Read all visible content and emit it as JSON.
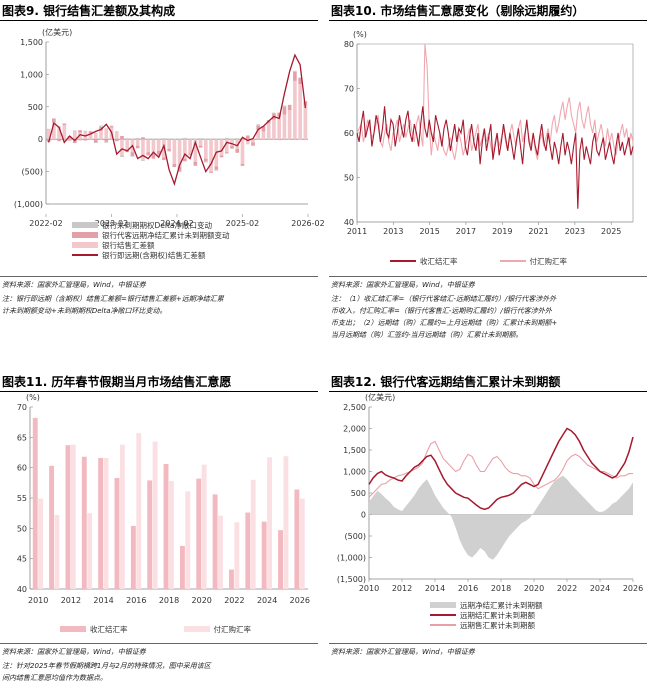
{
  "panels": [
    {
      "title": "图表9. 银行结售汇差额及其构成",
      "source": "资料来源：国家外汇管理局，Wind，中银证券",
      "note1": "注：银行即远期（含期权）结售汇差额=银行结售汇差额+远期净结汇累",
      "note2": "计未到期额变动+未到期期权Delta净敞口环比变动。"
    },
    {
      "title": "图表10. 市场结售汇意愿变化（剔除远期履约）",
      "source": "资料来源：国家外汇管理局，Wind，中银证券",
      "note1": "注：（1）收汇结汇率=（银行代客结汇-远期结汇履约）/银行代客涉外外",
      "note2": "币收入，付汇购汇率=（银行代客售汇-远期购汇履约）/银行代客涉外外",
      "note3": "币支出；（2）远期结（购）汇履约=上月远期结（购）汇累计未到期额+",
      "note4": "当月远期结（购）汇签约-当月远期结（购）汇累计未到期额。"
    },
    {
      "title": "图表11. 历年春节假期当月市场结售汇意愿",
      "source": "资料来源：国家外汇管理局，Wind，中银证券",
      "note1": "注：针对2025年春节假期横跨1月与2月的特殊情况，图中采用该区",
      "note2": "间内结售汇意愿均值作为数据点。"
    },
    {
      "title": "图表12. 银行代客远期结售汇累计未到期额",
      "source": "资料来源：国家外汇管理局，Wind，中银证券"
    }
  ],
  "chart_data": [
    {
      "type": "bar",
      "ylabel": "(亿美元)",
      "ylim": [
        -1000,
        1500
      ],
      "yticks": [
        "(1,000)",
        "(500)",
        "0",
        "500",
        "1,000",
        "1,500"
      ],
      "xticks": [
        "2022-02",
        "2023-02",
        "2024-02",
        "2025-02",
        "2026-02"
      ],
      "series": [
        {
          "name": "银行未到期期权Delta净敞口变动",
          "kind": "bar",
          "color": "#c8c8c8",
          "values": [
            10,
            -15,
            20,
            5,
            -10,
            15,
            -20,
            10,
            5,
            -10,
            20,
            -15,
            10,
            5,
            -25,
            15,
            -10,
            20,
            -15,
            10,
            5,
            -20,
            15,
            -10,
            10,
            -15,
            20,
            -10,
            5,
            15,
            -20,
            10,
            -15,
            5,
            20,
            -10,
            15,
            -5,
            10,
            -15,
            20,
            -10,
            5,
            10,
            -15,
            20,
            -10,
            15,
            -5,
            10
          ]
        },
        {
          "name": "银行代客远期净结汇累计未到期额变动",
          "kind": "bar",
          "color": "#e4a0a8",
          "values": [
            -40,
            60,
            -30,
            20,
            50,
            -60,
            40,
            -20,
            30,
            -50,
            60,
            -40,
            20,
            -30,
            50,
            -20,
            -60,
            -40,
            30,
            -50,
            -80,
            -60,
            -40,
            -30,
            -50,
            -70,
            -40,
            -20,
            -60,
            -30,
            -40,
            -20,
            -50,
            -30,
            -20,
            -40,
            -60,
            -30,
            50,
            -40,
            60,
            80,
            40,
            100,
            60,
            120,
            80,
            140,
            100,
            60
          ]
        },
        {
          "name": "银行结售汇差额",
          "kind": "bar",
          "color": "#f3c8cd",
          "values": [
            150,
            260,
            180,
            220,
            -20,
            120,
            100,
            120,
            90,
            100,
            130,
            170,
            180,
            120,
            -250,
            -180,
            -200,
            -100,
            -320,
            -200,
            -220,
            -180,
            -280,
            -150,
            -380,
            -420,
            -300,
            -220,
            -350,
            -100,
            -300,
            -500,
            -420,
            -250,
            -200,
            -100,
            -150,
            -380,
            -80,
            -50,
            150,
            120,
            250,
            300,
            350,
            380,
            450,
            900,
            850,
            520
          ]
        },
        {
          "name": "银行即远期(含期权)结售汇差额",
          "kind": "line",
          "color": "#a6192e",
          "values": [
            -50,
            250,
            180,
            -50,
            50,
            -20,
            70,
            50,
            80,
            120,
            150,
            230,
            110,
            -230,
            -150,
            -180,
            -100,
            -300,
            -250,
            -300,
            -200,
            -280,
            -100,
            -470,
            -690,
            -400,
            -230,
            -300,
            -50,
            -280,
            -500,
            -380,
            -200,
            -180,
            -50,
            -70,
            -100,
            30,
            -20,
            10,
            150,
            200,
            280,
            350,
            320,
            700,
            1050,
            1300,
            1150,
            480
          ]
        }
      ]
    },
    {
      "type": "line",
      "ylabel": "(%)",
      "ylim": [
        40,
        80
      ],
      "yticks": [
        "40",
        "50",
        "60",
        "70",
        "80"
      ],
      "xticks": [
        "2011",
        "2013",
        "2015",
        "2017",
        "2019",
        "2021",
        "2023",
        "2025"
      ],
      "series": [
        {
          "name": "收汇结汇率",
          "color": "#a6192e",
          "values": [
            60,
            58,
            62,
            65,
            59,
            61,
            63,
            57,
            60,
            64,
            62,
            58,
            61,
            66,
            60,
            59,
            63,
            62,
            57,
            60,
            64,
            61,
            59,
            63,
            65,
            60,
            58,
            62,
            60,
            57,
            62,
            66,
            61,
            59,
            63,
            60,
            58,
            64,
            62,
            60,
            57,
            61,
            63,
            60,
            56,
            59,
            62,
            58,
            61,
            60,
            63,
            57,
            55,
            59,
            62,
            58,
            56,
            60,
            53,
            58,
            61,
            56,
            59,
            62,
            54,
            57,
            60,
            55,
            58,
            62,
            59,
            56,
            60,
            57,
            54,
            58,
            61,
            57,
            53,
            59,
            63,
            58,
            56,
            60,
            57,
            55,
            59,
            62,
            58,
            56,
            60,
            57,
            54,
            58,
            56,
            53,
            57,
            60,
            55,
            58,
            56,
            53,
            57,
            60,
            43,
            56,
            59,
            54,
            57,
            55,
            53,
            58,
            60,
            56,
            55,
            57,
            59,
            54,
            56,
            58,
            55,
            53,
            57,
            60,
            56,
            58,
            55,
            57,
            59,
            55,
            57
          ]
        },
        {
          "name": "付汇购汇率",
          "color": "#f0a8b0",
          "values": [
            60,
            61,
            62,
            58,
            60,
            63,
            61,
            59,
            60,
            62,
            64,
            58,
            57,
            60,
            62,
            58,
            56,
            60,
            61,
            63,
            58,
            60,
            62,
            59,
            61,
            63,
            60,
            58,
            62,
            64,
            60,
            57,
            80,
            75,
            62,
            55,
            60,
            58,
            56,
            60,
            58,
            56,
            55,
            57,
            59,
            56,
            54,
            57,
            60,
            58,
            55,
            57,
            59,
            61,
            56,
            58,
            60,
            62,
            57,
            59,
            61,
            58,
            60,
            57,
            55,
            58,
            60,
            57,
            59,
            61,
            58,
            56,
            60,
            62,
            59,
            57,
            61,
            63,
            58,
            60,
            62,
            59,
            57,
            60,
            56,
            54,
            58,
            60,
            57,
            59,
            61,
            58,
            62,
            64,
            60,
            62,
            65,
            67,
            63,
            66,
            68,
            64,
            62,
            60,
            65,
            67,
            63,
            61,
            64,
            66,
            62,
            60,
            63,
            58,
            60,
            62,
            59,
            57,
            61,
            58,
            60,
            57,
            55,
            58,
            60,
            62,
            59,
            61,
            57,
            60,
            58
          ]
        }
      ]
    },
    {
      "type": "bar",
      "ylabel": "(%)",
      "ylim": [
        40,
        70
      ],
      "yticks": [
        "40",
        "45",
        "50",
        "55",
        "60",
        "65",
        "70"
      ],
      "categories": [
        "2010",
        "2011",
        "2012",
        "2013",
        "2014",
        "2015",
        "2016",
        "2017",
        "2018",
        "2019",
        "2020",
        "2021",
        "2022",
        "2023",
        "2024",
        "2025",
        "2026"
      ],
      "xticks": [
        "2010",
        "2012",
        "2014",
        "2016",
        "2018",
        "2020",
        "2022",
        "2024",
        "2026"
      ],
      "series": [
        {
          "name": "收汇结汇率",
          "color": "#f3b9c0",
          "values": [
            68.2,
            60.3,
            63.7,
            61.8,
            61.6,
            58.3,
            50.4,
            57.9,
            60.6,
            47.1,
            58.2,
            55.6,
            43.2,
            52.6,
            51.1,
            49.7,
            56.4
          ]
        },
        {
          "name": "付汇购汇率",
          "color": "#fbe0e3",
          "values": [
            54.9,
            52.2,
            63.8,
            52.5,
            61.6,
            63.8,
            65.7,
            64.3,
            57.8,
            56.1,
            60.5,
            52.1,
            51.0,
            58.0,
            61.7,
            61.9,
            54.9
          ]
        }
      ]
    },
    {
      "type": "area",
      "ylabel": "(亿美元)",
      "ylim": [
        -1500,
        2500
      ],
      "yticks": [
        "(1,500)",
        "(1,000)",
        "(500)",
        "0",
        "500",
        "1,000",
        "1,500",
        "2,000",
        "2,500"
      ],
      "xticks": [
        "2010",
        "2012",
        "2014",
        "2016",
        "2018",
        "2020",
        "2022",
        "2024",
        "2026"
      ],
      "series": [
        {
          "name": "远期净结汇累计未到期额",
          "kind": "area",
          "color": "#d0d0d0",
          "values": [
            300,
            420,
            550,
            480,
            380,
            300,
            180,
            120,
            80,
            200,
            320,
            450,
            600,
            720,
            820,
            650,
            450,
            300,
            150,
            50,
            -50,
            -300,
            -600,
            -800,
            -950,
            -1000,
            -900,
            -780,
            -850,
            -1000,
            -1050,
            -950,
            -800,
            -650,
            -500,
            -400,
            -300,
            -200,
            -150,
            -80,
            50,
            200,
            350,
            500,
            650,
            780,
            850,
            900,
            820,
            700,
            600,
            500,
            400,
            300,
            200,
            100,
            50,
            80,
            150,
            250,
            300,
            400,
            500,
            600,
            750
          ]
        },
        {
          "name": "远期结汇累计未到期额",
          "kind": "line",
          "color": "#a6192e",
          "values": [
            700,
            850,
            950,
            1000,
            920,
            880,
            850,
            800,
            780,
            900,
            1000,
            1100,
            1150,
            1250,
            1350,
            1380,
            1250,
            1050,
            850,
            700,
            600,
            500,
            450,
            400,
            380,
            300,
            220,
            150,
            120,
            150,
            250,
            350,
            400,
            420,
            450,
            500,
            600,
            700,
            750,
            700,
            650,
            700,
            900,
            1100,
            1300,
            1500,
            1700,
            1850,
            2000,
            1950,
            1850,
            1700,
            1500,
            1350,
            1200,
            1100,
            1000,
            950,
            900,
            850,
            900,
            1050,
            1200,
            1450,
            1800
          ]
        },
        {
          "name": "远期售汇累计未到期额",
          "kind": "line",
          "color": "#e8a0a8",
          "values": [
            400,
            500,
            600,
            700,
            720,
            800,
            850,
            900,
            920,
            960,
            1000,
            1050,
            1100,
            1200,
            1450,
            1650,
            1700,
            1500,
            1300,
            1200,
            1100,
            1000,
            1050,
            1250,
            1400,
            1350,
            1150,
            1000,
            1000,
            1150,
            1300,
            1350,
            1250,
            1100,
            1000,
            950,
            950,
            900,
            900,
            850,
            700,
            600,
            650,
            700,
            750,
            800,
            900,
            1050,
            1250,
            1350,
            1400,
            1350,
            1250,
            1150,
            1100,
            1050,
            1000,
            1000,
            950,
            900,
            850,
            900,
            900,
            950,
            950
          ]
        }
      ]
    }
  ]
}
